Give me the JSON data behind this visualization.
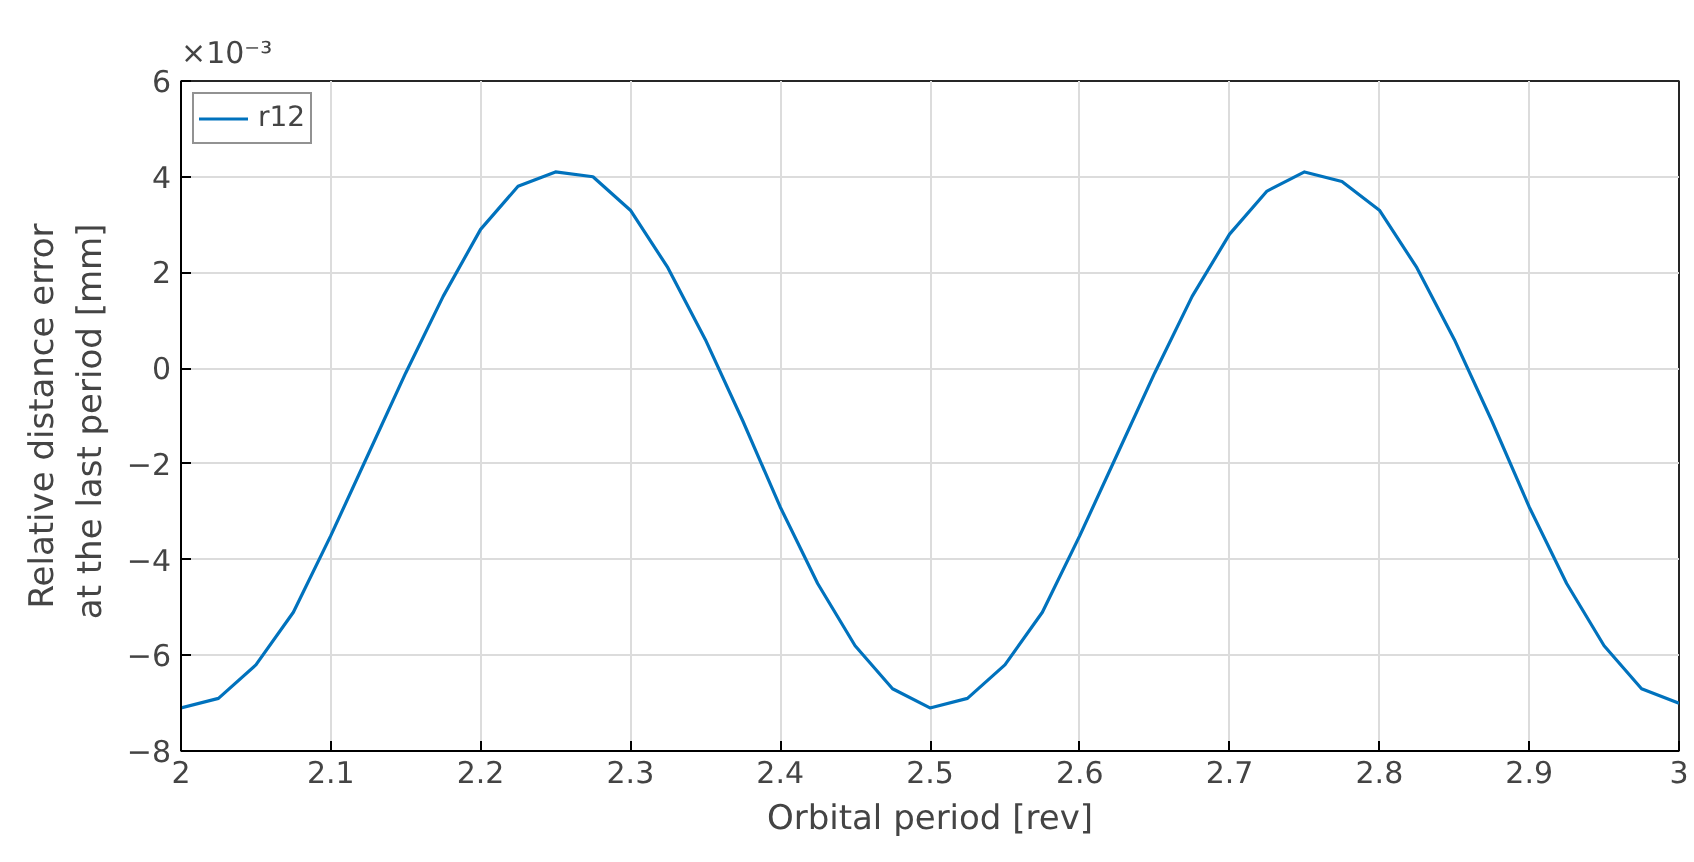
{
  "chart_data": {
    "type": "line",
    "xlabel": "Orbital period [rev]",
    "ylabel": "Relative distance error\nat the last period  [mm]",
    "x": [
      2.0,
      2.025,
      2.05,
      2.075,
      2.1,
      2.125,
      2.15,
      2.175,
      2.2,
      2.225,
      2.25,
      2.275,
      2.3,
      2.325,
      2.35,
      2.375,
      2.4,
      2.425,
      2.45,
      2.475,
      2.5,
      2.525,
      2.55,
      2.575,
      2.6,
      2.625,
      2.65,
      2.675,
      2.7,
      2.725,
      2.75,
      2.775,
      2.8,
      2.825,
      2.85,
      2.875,
      2.9,
      2.925,
      2.95,
      2.975,
      3.0
    ],
    "series": [
      {
        "name": "r12",
        "color": "#0072bd",
        "values": [
          -7.1,
          -6.9,
          -6.2,
          -5.1,
          -3.5,
          -1.8,
          -0.1,
          1.5,
          2.9,
          3.8,
          4.1,
          4.0,
          3.3,
          2.1,
          0.6,
          -1.1,
          -2.9,
          -4.5,
          -5.8,
          -6.7,
          -7.1,
          -6.9,
          -6.2,
          -5.1,
          -3.5,
          -1.8,
          -0.1,
          1.5,
          2.8,
          3.7,
          4.1,
          3.9,
          3.3,
          2.1,
          0.6,
          -1.1,
          -2.9,
          -4.5,
          -5.8,
          -6.7,
          -7.0
        ]
      }
    ],
    "xlim": [
      2,
      3
    ],
    "xticks": [
      2,
      2.1,
      2.2,
      2.3,
      2.4,
      2.5,
      2.6,
      2.7,
      2.8,
      2.9,
      3
    ],
    "ylim": [
      -8,
      6
    ],
    "yticks": [
      -8,
      -6,
      -4,
      -2,
      0,
      2,
      4,
      6
    ],
    "annotations": [
      "×10⁻³"
    ],
    "grid": true,
    "legend": "top left",
    "line_style": "solid"
  }
}
